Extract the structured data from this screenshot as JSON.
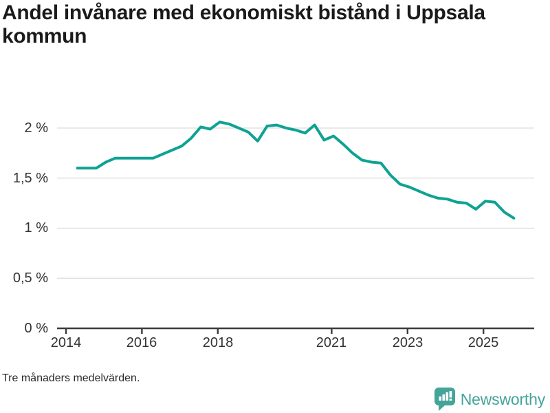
{
  "title": "Andel invånare med ekonomiskt bistånd i Uppsala kommun",
  "footnote": "Tre månaders medelvärden.",
  "brand": {
    "name": "Newsworthy",
    "icon": "bar-chart-speech-bubble-icon",
    "color": "#44a499"
  },
  "colors": {
    "line": "#0fa294",
    "grid": "#dcdcdc",
    "axis": "#3c3c3c",
    "tick_text": "#333333",
    "title_text": "#1a1a1a"
  },
  "chart_data": {
    "type": "line",
    "title": "Andel invånare med ekonomiskt bistånd i Uppsala kommun",
    "xlabel": "",
    "ylabel": "",
    "unit": "%",
    "grid": "horizontal",
    "legend": "none",
    "xlim": [
      2013.77,
      2026.35
    ],
    "ylim": [
      0,
      2.25
    ],
    "y_ticks": [
      {
        "value": 2,
        "label": "2 %"
      },
      {
        "value": 1.5,
        "label": "1,5 %"
      },
      {
        "value": 1,
        "label": "1 %"
      },
      {
        "value": 0.5,
        "label": "0,5 %"
      },
      {
        "value": 0,
        "label": "0 %"
      }
    ],
    "x_ticks": [
      {
        "value": 2014,
        "label": "2014"
      },
      {
        "value": 2016,
        "label": "2016"
      },
      {
        "value": 2018,
        "label": "2018"
      },
      {
        "value": 2021,
        "label": "2021"
      },
      {
        "value": 2023,
        "label": "2023"
      },
      {
        "value": 2025,
        "label": "2025"
      }
    ],
    "series": [
      {
        "name": "Uppsala kommun",
        "points": [
          [
            2014.3,
            1.6
          ],
          [
            2014.55,
            1.6
          ],
          [
            2014.8,
            1.6
          ],
          [
            2015.05,
            1.66
          ],
          [
            2015.3,
            1.7
          ],
          [
            2015.55,
            1.7
          ],
          [
            2015.8,
            1.7
          ],
          [
            2016.05,
            1.7
          ],
          [
            2016.3,
            1.7
          ],
          [
            2016.55,
            1.74
          ],
          [
            2016.8,
            1.78
          ],
          [
            2017.05,
            1.82
          ],
          [
            2017.3,
            1.9
          ],
          [
            2017.55,
            2.01
          ],
          [
            2017.8,
            1.99
          ],
          [
            2018.05,
            2.06
          ],
          [
            2018.3,
            2.04
          ],
          [
            2018.55,
            2.0
          ],
          [
            2018.8,
            1.96
          ],
          [
            2019.05,
            1.87
          ],
          [
            2019.3,
            2.02
          ],
          [
            2019.55,
            2.03
          ],
          [
            2019.8,
            2.0
          ],
          [
            2020.05,
            1.98
          ],
          [
            2020.3,
            1.95
          ],
          [
            2020.55,
            2.03
          ],
          [
            2020.8,
            1.88
          ],
          [
            2021.05,
            1.92
          ],
          [
            2021.3,
            1.84
          ],
          [
            2021.55,
            1.75
          ],
          [
            2021.8,
            1.68
          ],
          [
            2022.05,
            1.66
          ],
          [
            2022.3,
            1.65
          ],
          [
            2022.55,
            1.53
          ],
          [
            2022.8,
            1.44
          ],
          [
            2023.05,
            1.41
          ],
          [
            2023.3,
            1.37
          ],
          [
            2023.55,
            1.33
          ],
          [
            2023.8,
            1.3
          ],
          [
            2024.05,
            1.29
          ],
          [
            2024.3,
            1.26
          ],
          [
            2024.55,
            1.25
          ],
          [
            2024.8,
            1.19
          ],
          [
            2025.05,
            1.27
          ],
          [
            2025.3,
            1.26
          ],
          [
            2025.55,
            1.16
          ],
          [
            2025.8,
            1.1
          ]
        ]
      }
    ]
  }
}
